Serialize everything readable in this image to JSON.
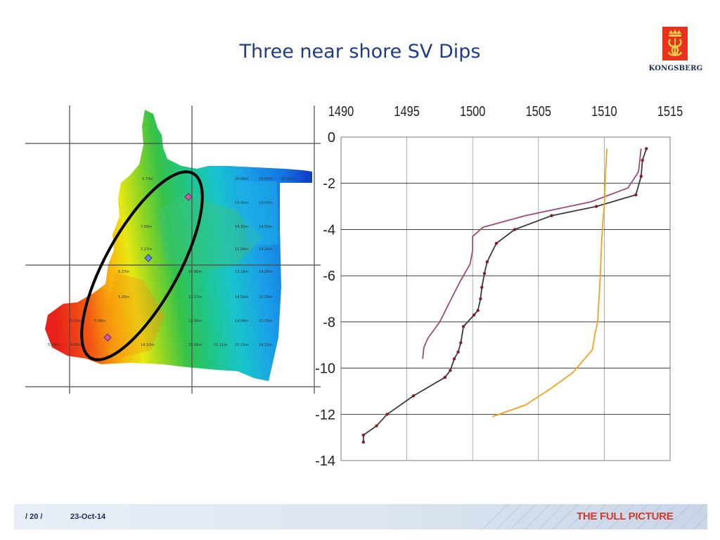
{
  "slide": {
    "title": "Three near shore SV Dips",
    "logo_text": "KONGSBERG"
  },
  "footer": {
    "page_number": "/ 20 /",
    "date": "23-Oct-14",
    "tagline": "THE FULL PICTURE"
  },
  "colors": {
    "title": "#1f3c88",
    "logo_red": "#e8321e",
    "tagline_red": "#d23a2e",
    "series_black": "#3a3a3a",
    "series_purple": "#9c4a7a",
    "series_orange": "#f5a01e",
    "ellipse": "#000000"
  },
  "map": {
    "depth_labels": [
      "5.73m",
      "15.01m",
      "16.08m",
      "16.00m",
      "13.50m",
      "13.53m",
      "7.00m",
      "14.30m",
      "14.50m",
      "7.27m",
      "11.04m",
      "14.20m",
      "6.27m",
      "10.80m",
      "13.10m",
      "14.20m",
      "5.25m",
      "13.17m",
      "14.50m",
      "15.23m",
      "6.30m",
      "12.50m",
      "14.99m",
      "15.23m",
      "5.56m",
      "14.10m",
      "15.06m",
      "15.11m",
      "15.15m",
      "14.22m",
      "5.04m",
      "4.95m"
    ],
    "icons": [
      "pin-icon",
      "pin-icon",
      "pin-icon"
    ]
  },
  "chart_data": {
    "type": "line",
    "title": "",
    "xlabel": "",
    "ylabel": "",
    "x_axis_position": "top",
    "xlim": [
      1490,
      1515
    ],
    "ylim": [
      -14,
      0
    ],
    "x_ticks": [
      "1490",
      "1495",
      "1500",
      "1505",
      "1510",
      "1515"
    ],
    "y_ticks": [
      "0",
      "-2",
      "-4",
      "-6",
      "-8",
      "-10",
      "-12",
      "-14"
    ],
    "grid": true,
    "series": [
      {
        "color": "#3a3a3a",
        "markers": true,
        "x": [
          1513.2,
          1512.9,
          1512.8,
          1512.4,
          1509.4,
          1506.0,
          1503.2,
          1501.8,
          1501.1,
          1500.9,
          1500.7,
          1500.6,
          1500.4,
          1500.1,
          1499.3,
          1499.1,
          1498.9,
          1498.6,
          1498.3,
          1497.9,
          1495.5,
          1493.5,
          1492.7,
          1491.7,
          1491.7
        ],
        "y": [
          -0.5,
          -1.0,
          -1.7,
          -2.5,
          -3.0,
          -3.4,
          -4.0,
          -4.6,
          -5.4,
          -5.9,
          -6.5,
          -7.0,
          -7.5,
          -7.7,
          -8.2,
          -8.9,
          -9.3,
          -9.6,
          -10.1,
          -10.4,
          -11.2,
          -12.0,
          -12.5,
          -12.9,
          -13.2
        ]
      },
      {
        "color": "#9c4a7a",
        "markers": false,
        "x": [
          1512.8,
          1512.6,
          1511.8,
          1509.0,
          1504.0,
          1500.8,
          1500.0,
          1500.0,
          1499.8,
          1499.0,
          1498.2,
          1497.5,
          1496.6,
          1496.3,
          1496.2
        ],
        "y": [
          -0.5,
          -1.5,
          -2.2,
          -2.8,
          -3.4,
          -3.9,
          -4.3,
          -4.9,
          -5.5,
          -6.3,
          -7.2,
          -8.0,
          -8.7,
          -9.1,
          -9.6
        ]
      },
      {
        "color": "#f5a01e",
        "markers": false,
        "x": [
          1510.2,
          1510.1,
          1510.0,
          1509.9,
          1509.8,
          1509.7,
          1509.6,
          1509.5,
          1509.3,
          1509.1,
          1507.6,
          1505.9,
          1504.0,
          1502.5,
          1501.5
        ],
        "y": [
          -0.5,
          -1.5,
          -3.0,
          -3.6,
          -4.5,
          -6.0,
          -7.0,
          -8.0,
          -8.5,
          -9.2,
          -10.2,
          -10.9,
          -11.6,
          -11.9,
          -12.1
        ]
      }
    ]
  }
}
